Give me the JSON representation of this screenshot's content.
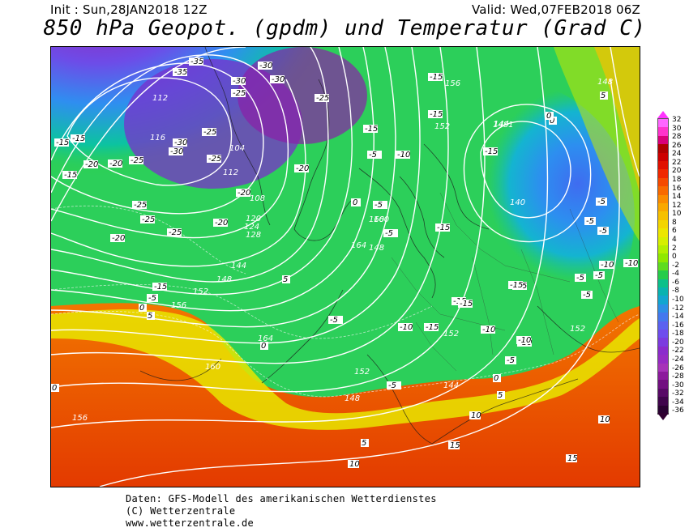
{
  "header": {
    "init": "Init : Sun,28JAN2018 12Z",
    "valid": "Valid: Wed,07FEB2018 06Z",
    "title": "850 hPa Geopot. (gpdm) und Temperatur (Grad C)"
  },
  "legend": {
    "values": [
      "32",
      "30",
      "28",
      "26",
      "24",
      "22",
      "20",
      "18",
      "16",
      "14",
      "12",
      "10",
      "8",
      "6",
      "4",
      "2",
      "0",
      "-2",
      "-4",
      "-6",
      "-8",
      "-10",
      "-12",
      "-14",
      "-16",
      "-18",
      "-20",
      "-22",
      "-24",
      "-26",
      "-28",
      "-30",
      "-32",
      "-34",
      "-36"
    ],
    "colors": [
      "#ff66ff",
      "#ff33cc",
      "#d9007a",
      "#b00000",
      "#cc0000",
      "#e01000",
      "#f02800",
      "#f54a00",
      "#f86a00",
      "#fa8c00",
      "#f9a800",
      "#f6c000",
      "#f3d500",
      "#ece600",
      "#d6ef00",
      "#b3ef00",
      "#8fe800",
      "#5edc1f",
      "#26cc4a",
      "#0cc08a",
      "#09b3b0",
      "#12a6d0",
      "#2d8fe6",
      "#4478ee",
      "#5b62f0",
      "#6e4ded",
      "#7c3bdf",
      "#8b2bcc",
      "#962bc4",
      "#a633b8",
      "#8c1a9c",
      "#721080",
      "#580a66",
      "#40054c",
      "#2a0232"
    ]
  },
  "contour_labels": [
    {
      "t": "112",
      "c": "white"
    },
    {
      "t": "116",
      "c": "white"
    },
    {
      "t": "104",
      "c": "white"
    },
    {
      "t": "108",
      "c": "white"
    },
    {
      "t": "112",
      "c": "white"
    },
    {
      "t": "120",
      "c": "white"
    },
    {
      "t": "124",
      "c": "white"
    },
    {
      "t": "128",
      "c": "white"
    },
    {
      "t": "136",
      "c": "white"
    },
    {
      "t": "140",
      "c": "white"
    },
    {
      "t": "144",
      "c": "white"
    },
    {
      "t": "148",
      "c": "white"
    },
    {
      "t": "152",
      "c": "white"
    },
    {
      "t": "156",
      "c": "white"
    },
    {
      "t": "160",
      "c": "white"
    },
    {
      "t": "164",
      "c": "white"
    },
    {
      "t": "156",
      "c": "white"
    },
    {
      "t": "160",
      "c": "white"
    },
    {
      "t": "152",
      "c": "white"
    },
    {
      "t": "148",
      "c": "white"
    },
    {
      "t": "144",
      "c": "white"
    },
    {
      "t": "148",
      "c": "white"
    },
    {
      "t": "152",
      "c": "white"
    },
    {
      "t": "156",
      "c": "white"
    },
    {
      "t": "144",
      "c": "white"
    },
    {
      "t": "140",
      "c": "white"
    },
    {
      "t": "152",
      "c": "white"
    },
    {
      "t": "148",
      "c": "white"
    },
    {
      "t": "152",
      "c": "white"
    },
    {
      "t": "144",
      "c": "white"
    },
    {
      "t": "148",
      "c": "white"
    },
    {
      "t": "152",
      "c": "white"
    },
    {
      "t": "156",
      "c": "white"
    },
    {
      "t": "164",
      "c": "white"
    },
    {
      "t": "160",
      "c": "white"
    },
    {
      "t": "148",
      "c": "white"
    },
    {
      "t": "144",
      "c": "white"
    },
    {
      "t": "1481",
      "c": "white"
    },
    {
      "t": "148",
      "c": "white"
    },
    {
      "t": "152",
      "c": "white"
    },
    {
      "t": "156",
      "c": "white"
    }
  ],
  "temp_labels": [
    {
      "t": "-35"
    },
    {
      "t": "-35"
    },
    {
      "t": "-30"
    },
    {
      "t": "-30"
    },
    {
      "t": "-30"
    },
    {
      "t": "-25"
    },
    {
      "t": "-25"
    },
    {
      "t": "-30"
    },
    {
      "t": "-30"
    },
    {
      "t": "-25"
    },
    {
      "t": "-25"
    },
    {
      "t": "-20"
    },
    {
      "t": "-20"
    },
    {
      "t": "-15"
    },
    {
      "t": "-15"
    },
    {
      "t": "-15"
    },
    {
      "t": "-20"
    },
    {
      "t": "-20"
    },
    {
      "t": "-25"
    },
    {
      "t": "-25"
    },
    {
      "t": "-25"
    },
    {
      "t": "-25"
    },
    {
      "t": "-20"
    },
    {
      "t": "-20"
    },
    {
      "t": "-15"
    },
    {
      "t": "-15"
    },
    {
      "t": "-5"
    },
    {
      "t": "0"
    },
    {
      "t": "-5"
    },
    {
      "t": "-5"
    },
    {
      "t": "-10"
    },
    {
      "t": "-15"
    },
    {
      "t": "-15"
    },
    {
      "t": "-15"
    },
    {
      "t": "-15"
    },
    {
      "t": "-15"
    },
    {
      "t": "-10"
    },
    {
      "t": "-10"
    },
    {
      "t": "-5"
    },
    {
      "t": "-5"
    },
    {
      "t": "0"
    },
    {
      "t": "5"
    },
    {
      "t": "-5"
    },
    {
      "t": "-5"
    },
    {
      "t": "-10"
    },
    {
      "t": "-15"
    },
    {
      "t": "-15"
    },
    {
      "t": "-10"
    },
    {
      "t": "-5"
    },
    {
      "t": "0"
    },
    {
      "t": "5"
    },
    {
      "t": "10"
    },
    {
      "t": "10"
    },
    {
      "t": "15"
    },
    {
      "t": "15"
    },
    {
      "t": "10"
    },
    {
      "t": "0"
    },
    {
      "t": "5"
    },
    {
      "t": "5"
    },
    {
      "t": "0"
    },
    {
      "t": "-5"
    },
    {
      "t": "-5"
    },
    {
      "t": "-15"
    },
    {
      "t": "-15"
    },
    {
      "t": "-10"
    },
    {
      "t": "-5"
    },
    {
      "t": "-5"
    },
    {
      "t": "-10"
    },
    {
      "t": "-5"
    },
    {
      "t": "0"
    },
    {
      "t": "5"
    },
    {
      "t": "0"
    },
    {
      "t": "-15"
    },
    {
      "t": "-15"
    },
    {
      "t": "-10"
    },
    {
      "t": "-5"
    },
    {
      "t": "0"
    },
    {
      "t": "5"
    }
  ],
  "footer": {
    "line1": "Daten: GFS-Modell des amerikanischen Wetterdienstes",
    "line2": "(C) Wetterzentrale",
    "line3": "www.wetterzentrale.de"
  }
}
